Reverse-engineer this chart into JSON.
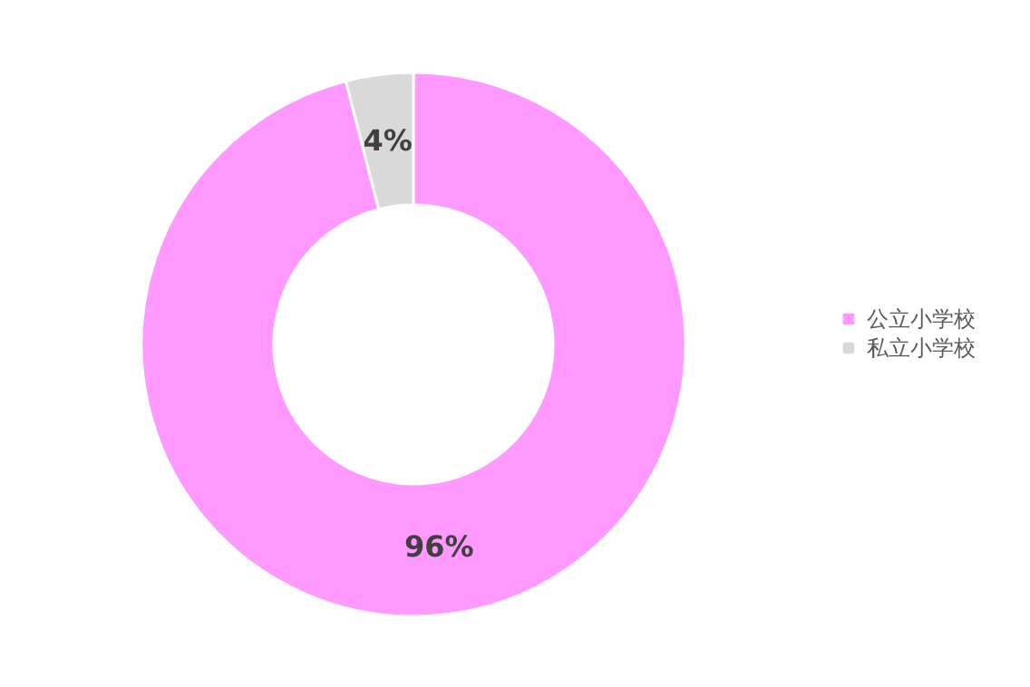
{
  "chart_data": {
    "type": "donut",
    "categories": [
      "公立小学校",
      "私立小学校"
    ],
    "values": [
      96,
      4
    ],
    "colors": [
      "#ff99ff",
      "#d9d9d9"
    ],
    "value_labels": [
      "96%",
      "4%"
    ],
    "legend": "right"
  }
}
